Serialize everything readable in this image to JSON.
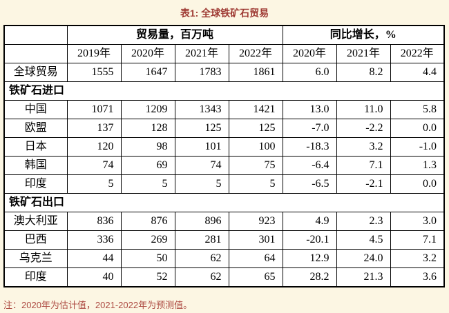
{
  "title": "表1: 全球铁矿石贸易",
  "table": {
    "group_headers": {
      "volume": "贸易量，百万吨",
      "growth": "同比增长，%"
    },
    "years": [
      "2019年",
      "2020年",
      "2021年",
      "2022年",
      "2020年",
      "2021年",
      "2022年"
    ],
    "rows": [
      {
        "type": "data",
        "label": "全球贸易",
        "values": [
          "1555",
          "1647",
          "1783",
          "1861",
          "6.0",
          "8.2",
          "4.4"
        ]
      },
      {
        "type": "section",
        "label": "铁矿石进口"
      },
      {
        "type": "data",
        "label": "中国",
        "values": [
          "1071",
          "1209",
          "1343",
          "1421",
          "13.0",
          "11.0",
          "5.8"
        ]
      },
      {
        "type": "data",
        "label": "欧盟",
        "values": [
          "137",
          "128",
          "125",
          "125",
          "-7.0",
          "-2.2",
          "0.0"
        ]
      },
      {
        "type": "data",
        "label": "日本",
        "values": [
          "120",
          "98",
          "101",
          "100",
          "-18.3",
          "3.2",
          "-1.0"
        ]
      },
      {
        "type": "data",
        "label": "韩国",
        "values": [
          "74",
          "69",
          "74",
          "75",
          "-6.4",
          "7.1",
          "1.3"
        ]
      },
      {
        "type": "data",
        "label": "印度",
        "values": [
          "5",
          "5",
          "5",
          "5",
          "-6.5",
          "-2.1",
          "0.0"
        ]
      },
      {
        "type": "section",
        "label": "铁矿石出口"
      },
      {
        "type": "data",
        "label": "澳大利亚",
        "values": [
          "836",
          "876",
          "896",
          "923",
          "4.9",
          "2.3",
          "3.0"
        ]
      },
      {
        "type": "data",
        "label": "巴西",
        "values": [
          "336",
          "269",
          "281",
          "301",
          "-20.1",
          "4.5",
          "7.1"
        ]
      },
      {
        "type": "data",
        "label": "乌克兰",
        "values": [
          "44",
          "50",
          "62",
          "64",
          "12.9",
          "24.0",
          "3.2"
        ]
      },
      {
        "type": "data",
        "label": "印度",
        "values": [
          "40",
          "52",
          "62",
          "65",
          "28.2",
          "21.3",
          "3.6"
        ]
      }
    ]
  },
  "note": "注：2020年为估计值，2021-2022年为预测值。",
  "colors": {
    "page_background": "#fcf6e3",
    "table_background": "#ffffff",
    "border": "#000000",
    "title_text": "#9e3a33",
    "note_text": "#ad4a42"
  }
}
